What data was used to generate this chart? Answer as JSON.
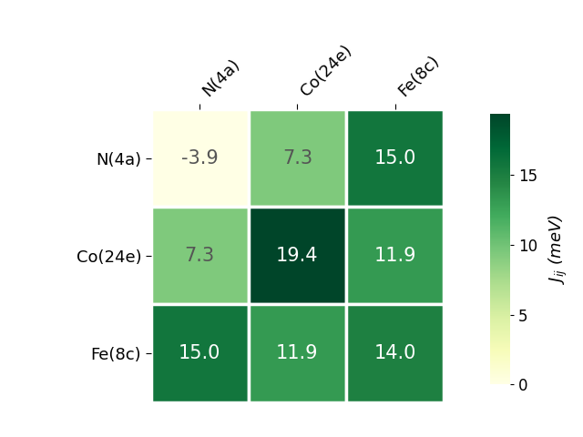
{
  "labels": [
    "N(4a)",
    "Co(24e)",
    "Fe(8c)"
  ],
  "matrix": [
    [
      -3.9,
      7.3,
      15.0
    ],
    [
      7.3,
      19.4,
      11.9
    ],
    [
      15.0,
      11.9,
      14.0
    ]
  ],
  "vmin": -3.9,
  "vmax": 19.4,
  "cmap": "YlGn",
  "colorbar_label": "$J_{ij}$ (meV)",
  "colorbar_ticks": [
    0,
    5,
    10,
    15
  ],
  "text_color_threshold": 8.0,
  "background_color": "#ffffff",
  "annot_fontsize": 15,
  "tick_fontsize": 13,
  "cbar_fontsize": 12
}
